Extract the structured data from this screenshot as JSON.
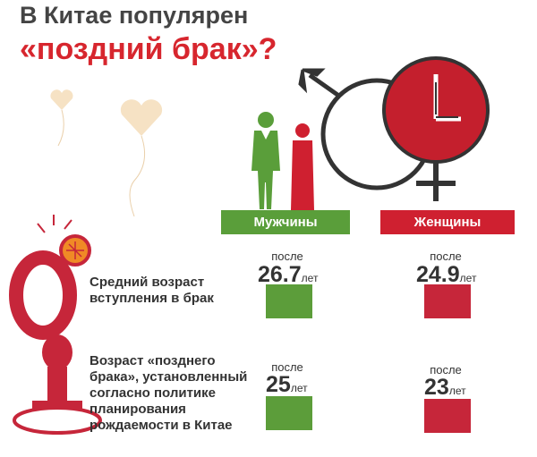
{
  "title": {
    "line1": "В Китае популярен",
    "line2": "«поздний брак»?"
  },
  "headers": {
    "men": "Мужчины",
    "women": "Женщины"
  },
  "rows": [
    {
      "label": "Средний возраст\nвступления в брак",
      "men": {
        "prefix": "после",
        "value": "26.7",
        "unit": "лет"
      },
      "women": {
        "prefix": "после",
        "value": "24.9",
        "unit": "лет"
      }
    },
    {
      "label": "Возраст «позднего\nбрака», установленный\nсогласно политике\nпланирования\nрождаемости в Китае",
      "men": {
        "prefix": "после",
        "value": "25",
        "unit": "лет"
      },
      "women": {
        "prefix": "после",
        "value": "23",
        "unit": "лет"
      }
    }
  ],
  "colors": {
    "men": "#5a9e3a",
    "women": "#cf2030",
    "accent": "#d7262e",
    "text": "#444444"
  },
  "icons": [
    "heart-balloon-icon",
    "groom-icon",
    "bride-icon",
    "male-symbol-icon",
    "female-symbol-icon",
    "clock-icon",
    "ring-icon",
    "stamp-icon"
  ]
}
